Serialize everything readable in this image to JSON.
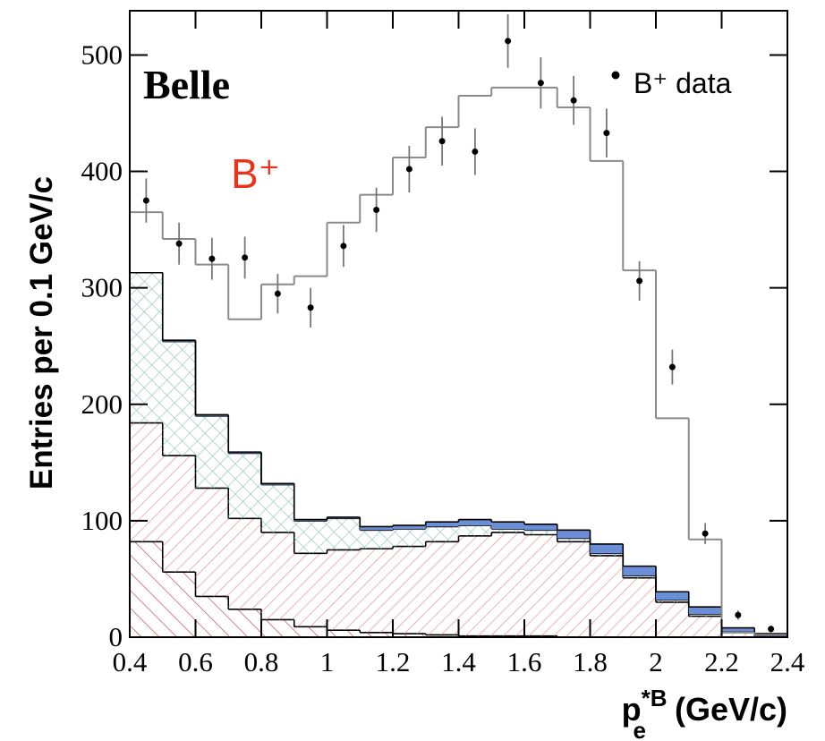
{
  "chart_data": {
    "type": "histogram",
    "annotations": {
      "experiment": "Belle",
      "sample": "B⁺"
    },
    "ylabel": "Entries per 0.1 GeV/c",
    "xlabel": {
      "main": "p",
      "sup": "*B",
      "sub": "e",
      "unit": " (GeV/c)"
    },
    "xlim": [
      0.4,
      2.4
    ],
    "ylim": [
      0,
      538
    ],
    "xticks": [
      0.4,
      0.6,
      0.8,
      1,
      1.2,
      1.4,
      1.6,
      1.8,
      2,
      2.2,
      2.4
    ],
    "yticks": [
      0,
      100,
      200,
      300,
      400,
      500
    ],
    "bins": [
      0.4,
      0.5,
      0.6,
      0.7,
      0.8,
      0.9,
      1.0,
      1.1,
      1.2,
      1.3,
      1.4,
      1.5,
      1.6,
      1.7,
      1.8,
      1.9,
      2.0,
      2.1,
      2.2,
      2.3,
      2.4
    ],
    "stacks": [
      {
        "color": "#c45a5a",
        "hatch": "back",
        "values": [
          82,
          56,
          35,
          24,
          15,
          9,
          6,
          4,
          3,
          2,
          1,
          1,
          1,
          0,
          0,
          0,
          0,
          0,
          0,
          0
        ]
      },
      {
        "color": "#e88a8a",
        "hatch": "forward",
        "values": [
          102,
          100,
          93,
          78,
          75,
          63,
          69,
          72,
          75,
          80,
          86,
          89,
          87,
          82,
          70,
          51,
          30,
          18,
          4,
          1
        ]
      },
      {
        "color": "#8fc4bf",
        "hatch": "cross",
        "values": [
          129,
          98,
          62,
          56,
          41,
          28,
          27,
          16,
          15,
          13,
          9,
          3,
          4,
          3,
          2,
          2,
          2,
          2,
          1,
          0
        ]
      },
      {
        "color": "#6b8fd6",
        "hatch": "solid",
        "values": [
          0,
          1,
          1,
          1,
          1,
          1,
          1,
          3,
          3,
          4,
          5,
          6,
          5,
          7,
          8,
          8,
          7,
          6,
          3,
          2
        ]
      }
    ],
    "total": {
      "color": "#8a8a8a",
      "values": [
        365,
        342,
        320,
        273,
        303,
        310,
        356,
        380,
        412,
        438,
        465,
        472,
        472,
        455,
        409,
        315,
        188,
        84,
        4,
        2
      ]
    },
    "series": [
      {
        "name": "B⁺ data",
        "color": "#000000",
        "x": [
          0.45,
          0.55,
          0.65,
          0.75,
          0.85,
          0.95,
          1.05,
          1.15,
          1.25,
          1.35,
          1.45,
          1.55,
          1.65,
          1.75,
          1.85,
          1.95,
          2.05,
          2.15,
          2.25,
          2.35
        ],
        "values": [
          375,
          338,
          325,
          326,
          295,
          283,
          336,
          367,
          402,
          426,
          417,
          512,
          476,
          461,
          433,
          306,
          232,
          89,
          19,
          7
        ],
        "errors": [
          19,
          18,
          18,
          18,
          17,
          17,
          18,
          19,
          20,
          21,
          20,
          23,
          22,
          21,
          21,
          17,
          15,
          9,
          4,
          3
        ]
      }
    ],
    "legend": "upper right"
  }
}
